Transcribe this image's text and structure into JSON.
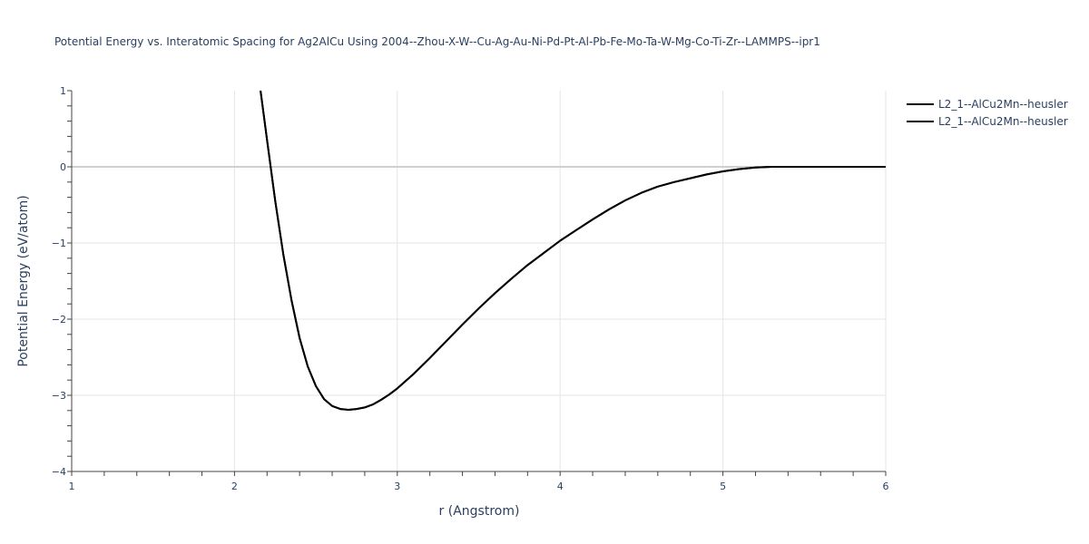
{
  "chart_data": {
    "type": "line",
    "title": "Potential Energy vs. Interatomic Spacing for Ag2AlCu Using 2004--Zhou-X-W--Cu-Ag-Au-Ni-Pd-Pt-Al-Pb-Fe-Mo-Ta-W-Mg-Co-Ti-Zr--LAMMPS--ipr1",
    "xlabel": "r (Angstrom)",
    "ylabel": "Potential Energy (eV/atom)",
    "xlim": [
      1,
      6
    ],
    "ylim": [
      -4,
      1
    ],
    "xticks": [
      "1",
      "2",
      "3",
      "4",
      "5",
      "6"
    ],
    "yticks": [
      "1",
      "0",
      "−1",
      "−2",
      "−3",
      "−4"
    ],
    "grid": true,
    "legend_position": "top-right",
    "series": [
      {
        "name": "L2_1--AlCu2Mn--heusler",
        "color": "#000000",
        "x": [
          2.16,
          2.2,
          2.25,
          2.3,
          2.35,
          2.4,
          2.45,
          2.5,
          2.55,
          2.6,
          2.65,
          2.7,
          2.75,
          2.8,
          2.85,
          2.9,
          2.95,
          3.0,
          3.1,
          3.2,
          3.3,
          3.4,
          3.5,
          3.6,
          3.7,
          3.8,
          3.9,
          4.0,
          4.1,
          4.2,
          4.3,
          4.4,
          4.5,
          4.6,
          4.7,
          4.8,
          4.9,
          5.0,
          5.1,
          5.2,
          5.3,
          5.4,
          5.5,
          5.6,
          5.7,
          5.8,
          5.9,
          6.0
        ],
        "y": [
          1.0,
          0.35,
          -0.45,
          -1.15,
          -1.75,
          -2.25,
          -2.62,
          -2.88,
          -3.05,
          -3.14,
          -3.18,
          -3.19,
          -3.18,
          -3.16,
          -3.12,
          -3.06,
          -2.99,
          -2.91,
          -2.72,
          -2.51,
          -2.29,
          -2.07,
          -1.86,
          -1.66,
          -1.47,
          -1.29,
          -1.13,
          -0.97,
          -0.83,
          -0.69,
          -0.56,
          -0.44,
          -0.34,
          -0.26,
          -0.2,
          -0.15,
          -0.1,
          -0.06,
          -0.03,
          -0.01,
          0.0,
          0.0,
          0.0,
          0.0,
          0.0,
          0.0,
          0.0,
          0.0
        ]
      },
      {
        "name": "L2_1--AlCu2Mn--heusler",
        "color": "#000000",
        "x": [
          2.16,
          2.2,
          2.25,
          2.3,
          2.35,
          2.4,
          2.45,
          2.5,
          2.55,
          2.6,
          2.65,
          2.7,
          2.75,
          2.8,
          2.85,
          2.9,
          2.95,
          3.0,
          3.1,
          3.2,
          3.3,
          3.4,
          3.5,
          3.6,
          3.7,
          3.8,
          3.9,
          4.0,
          4.1,
          4.2,
          4.3,
          4.4,
          4.5,
          4.6,
          4.7,
          4.8,
          4.9,
          5.0,
          5.1,
          5.2,
          5.3,
          5.4,
          5.5,
          5.6,
          5.7,
          5.8,
          5.9,
          6.0
        ],
        "y": [
          1.0,
          0.35,
          -0.45,
          -1.15,
          -1.75,
          -2.25,
          -2.62,
          -2.88,
          -3.05,
          -3.14,
          -3.18,
          -3.19,
          -3.18,
          -3.16,
          -3.12,
          -3.06,
          -2.99,
          -2.91,
          -2.72,
          -2.51,
          -2.29,
          -2.07,
          -1.86,
          -1.66,
          -1.47,
          -1.29,
          -1.13,
          -0.97,
          -0.83,
          -0.69,
          -0.56,
          -0.44,
          -0.34,
          -0.26,
          -0.2,
          -0.15,
          -0.1,
          -0.06,
          -0.03,
          -0.01,
          0.0,
          0.0,
          0.0,
          0.0,
          0.0,
          0.0,
          0.0,
          0.0
        ]
      }
    ]
  }
}
